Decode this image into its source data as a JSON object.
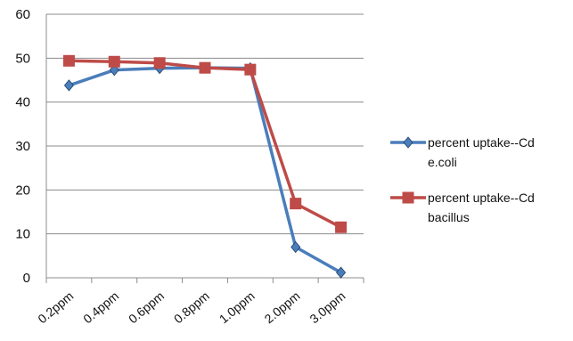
{
  "chart_data": {
    "type": "line",
    "categories": [
      "0.2ppm",
      "0.4ppm",
      "0.6ppm",
      "0.8ppm",
      "1.0ppm",
      "2.0ppm",
      "3.0ppm"
    ],
    "ylim": [
      0,
      60
    ],
    "yticks": [
      0,
      10,
      20,
      30,
      40,
      50,
      60
    ],
    "grid": true,
    "legend_position": "right",
    "series": [
      {
        "name": "percent  uptake--Cd e.coli",
        "legend_lines": [
          "percent  uptake--Cd",
          "e.coli"
        ],
        "values": [
          43.8,
          47.3,
          47.7,
          47.8,
          47.7,
          7.0,
          1.2
        ],
        "color": "#4a7ebb",
        "marker": "diamond"
      },
      {
        "name": "percent  uptake--Cd bacillus",
        "legend_lines": [
          "percent  uptake--Cd",
          "bacillus"
        ],
        "values": [
          49.4,
          49.2,
          48.9,
          47.8,
          47.4,
          16.9,
          11.5
        ],
        "color": "#be4b48",
        "marker": "square"
      }
    ]
  }
}
